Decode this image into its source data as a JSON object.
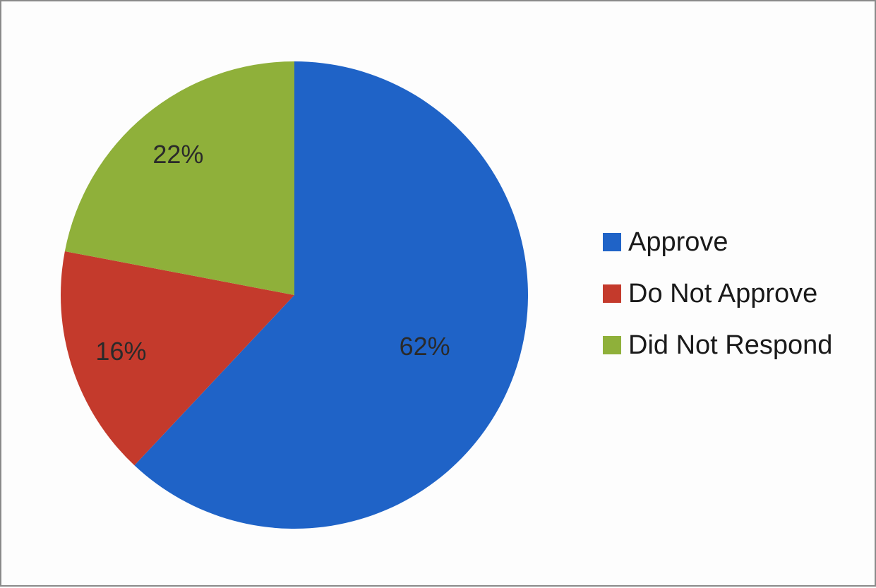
{
  "chart_data": {
    "type": "pie",
    "title": "",
    "categories": [
      "Approve",
      "Do Not Approve",
      "Did Not Respond"
    ],
    "values": [
      62,
      16,
      22
    ],
    "labels": [
      "62%",
      "16%",
      "22%"
    ],
    "colors": [
      "#1f63c7",
      "#c43a2c",
      "#8fb03a"
    ],
    "legend_position": "right",
    "legend": [
      {
        "label": "Approve",
        "color": "#1f63c7"
      },
      {
        "label": "Do Not Approve",
        "color": "#c43a2c"
      },
      {
        "label": "Did Not Respond",
        "color": "#8fb03a"
      }
    ]
  }
}
